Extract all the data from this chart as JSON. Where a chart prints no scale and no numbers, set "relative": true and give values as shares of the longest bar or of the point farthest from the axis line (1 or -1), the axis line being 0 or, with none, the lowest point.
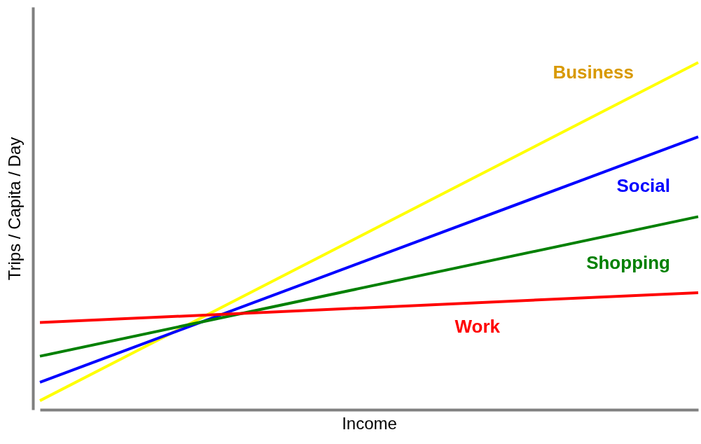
{
  "chart_data": {
    "type": "line",
    "relative": true,
    "xlabel": "Income",
    "ylabel": "Trips / Capita / Day",
    "categories": [
      null,
      null
    ],
    "legend": false,
    "marker": "none",
    "line_style": "solid",
    "series": [
      {
        "name": "Business",
        "color": "#ffff00",
        "values": [
          0.026,
          1
        ]
      },
      {
        "name": "Social",
        "color": "#0000ff",
        "values": [
          0.079,
          0.786
        ]
      },
      {
        "name": "Shopping",
        "color": "#008000",
        "values": [
          0.154,
          0.556
        ]
      },
      {
        "name": "Work",
        "color": "#ff0000",
        "values": [
          0.251,
          0.337
        ]
      }
    ]
  }
}
